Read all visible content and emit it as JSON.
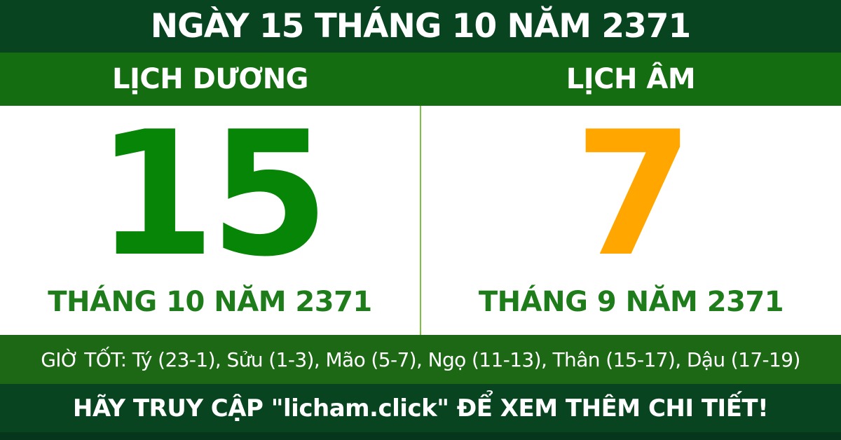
{
  "header": {
    "title": "NGÀY 15 THÁNG 10 NĂM 2371"
  },
  "calendars": {
    "solar": {
      "label": "LỊCH DƯƠNG",
      "day": "15",
      "month_year": "THÁNG 10 NĂM 2371"
    },
    "lunar": {
      "label": "LỊCH ÂM",
      "day": "7",
      "month_year": "THÁNG 9 NĂM 2371"
    }
  },
  "good_hours": {
    "text": "GIỜ TỐT: Tý (23-1), Sửu (1-3), Mão (5-7), Ngọ (11-13), Thân (15-17), Dậu (17-19)"
  },
  "footer": {
    "text": "HÃY TRUY CẬP \"licham.click\" ĐỂ XEM THÊM CHI TIẾT!"
  },
  "colors": {
    "dark_green": "#07441f",
    "band_green": "#156d12",
    "hours_green": "#1d6815",
    "solar_day_green": "#068506",
    "month_green": "#1e7d1a",
    "lunar_day_orange": "#ffa600",
    "divider_light_green": "#7bc144",
    "footer_strip_dark": "#06361b",
    "white": "#ffffff"
  }
}
